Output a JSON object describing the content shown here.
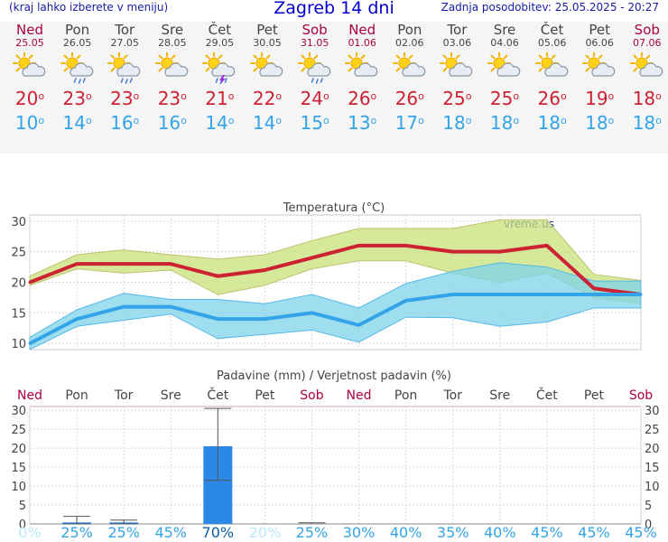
{
  "header": {
    "hint": "(kraj lahko izberete v meniju)",
    "title": "Zagreb 14 dni",
    "updated": "Zadnja posodobitev: 25.05.2025 - 20:27"
  },
  "days": [
    {
      "name": "Ned",
      "date": "25.05",
      "weekend": true,
      "icon": "sun-cloud",
      "tmax": "20",
      "tmin": "10"
    },
    {
      "name": "Pon",
      "date": "26.05",
      "weekend": false,
      "icon": "sun-cloud-rain",
      "tmax": "23",
      "tmin": "14"
    },
    {
      "name": "Tor",
      "date": "27.05",
      "weekend": false,
      "icon": "sun-cloud-rain",
      "tmax": "23",
      "tmin": "16"
    },
    {
      "name": "Sre",
      "date": "28.05",
      "weekend": false,
      "icon": "sun-cloud",
      "tmax": "23",
      "tmin": "16"
    },
    {
      "name": "Čet",
      "date": "29.05",
      "weekend": false,
      "icon": "thunderstorm",
      "tmax": "21",
      "tmin": "14"
    },
    {
      "name": "Pet",
      "date": "30.05",
      "weekend": false,
      "icon": "sun-cloud",
      "tmax": "22",
      "tmin": "14"
    },
    {
      "name": "Sob",
      "date": "31.05",
      "weekend": true,
      "icon": "sun-cloud-rain",
      "tmax": "24",
      "tmin": "15"
    },
    {
      "name": "Ned",
      "date": "01.06",
      "weekend": true,
      "icon": "sun-cloud",
      "tmax": "26",
      "tmin": "13"
    },
    {
      "name": "Pon",
      "date": "02.06",
      "weekend": false,
      "icon": "sun-cloud",
      "tmax": "26",
      "tmin": "17"
    },
    {
      "name": "Tor",
      "date": "03.06",
      "weekend": false,
      "icon": "sun-cloud",
      "tmax": "25",
      "tmin": "18"
    },
    {
      "name": "Sre",
      "date": "04.06",
      "weekend": false,
      "icon": "sun-cloud",
      "tmax": "25",
      "tmin": "18"
    },
    {
      "name": "Čet",
      "date": "05.06",
      "weekend": false,
      "icon": "sun-cloud",
      "tmax": "26",
      "tmin": "18"
    },
    {
      "name": "Pet",
      "date": "06.06",
      "weekend": false,
      "icon": "sun-cloud",
      "tmax": "19",
      "tmin": "18"
    },
    {
      "name": "Sob",
      "date": "07.06",
      "weekend": true,
      "icon": "sun-cloud",
      "tmax": "18",
      "tmin": "18"
    }
  ],
  "degree_symbol": "o",
  "colors": {
    "max": "#cc2233",
    "min": "#33a4e8",
    "weekend": "#aa0044",
    "bar": "#2b88e6",
    "band_max": "#c8e27a",
    "band_min": "#7fd3ea"
  },
  "chart_data": [
    {
      "type": "line",
      "title": "Temperatura (°C)",
      "watermark": "vreme.us",
      "x": [
        0,
        1,
        2,
        3,
        4,
        5,
        6,
        7,
        8,
        9,
        10,
        11,
        12,
        13
      ],
      "ylim": [
        9,
        31
      ],
      "yticks": [
        10,
        15,
        20,
        25,
        30
      ],
      "grid": true,
      "series": [
        {
          "values": [
            20,
            23,
            23,
            23,
            21,
            22,
            24,
            26,
            26,
            25,
            25,
            26,
            19,
            18
          ],
          "upper": [
            21,
            24.5,
            25.3,
            24.5,
            23.8,
            24.5,
            26.8,
            28.8,
            28.8,
            28.8,
            30.2,
            30.2,
            21.3,
            20.3
          ],
          "lower": [
            19.5,
            22.2,
            21.5,
            22,
            18,
            19.5,
            22.2,
            23.5,
            23.5,
            21.5,
            20,
            21.5,
            17.5,
            16.5
          ]
        },
        {
          "values": [
            10,
            14,
            16,
            16,
            14,
            14,
            15,
            13,
            17,
            18,
            18,
            18,
            18,
            18
          ],
          "upper": [
            11,
            15.5,
            18.2,
            17.2,
            17.2,
            16.5,
            18,
            15.8,
            19.8,
            21.8,
            23.2,
            22.5,
            20.2,
            20.2
          ],
          "lower": [
            9,
            12.8,
            13.8,
            14.8,
            10.8,
            11.5,
            12.2,
            10.2,
            14.3,
            14.2,
            12.8,
            13.5,
            15.8,
            15.8
          ]
        }
      ]
    },
    {
      "type": "bar",
      "title": "Padavine (mm) / Verjetnost padavin (%)",
      "ylim": [
        0,
        31
      ],
      "yticks": [
        0,
        5,
        10,
        15,
        20,
        25,
        30
      ],
      "values": [
        0,
        0.4,
        0.4,
        0,
        20.5,
        0,
        0,
        0,
        0,
        0,
        0,
        0,
        0,
        0
      ],
      "whisker_low": [
        null,
        0,
        0,
        null,
        11.5,
        null,
        0,
        null,
        null,
        null,
        null,
        null,
        null,
        null
      ],
      "whisker_high": [
        null,
        2,
        1,
        null,
        30.5,
        null,
        0.3,
        null,
        null,
        null,
        null,
        null,
        null,
        null
      ],
      "probability": [
        "0%",
        "25%",
        "25%",
        "45%",
        "70%",
        "20%",
        "25%",
        "30%",
        "40%",
        "35%",
        "40%",
        "45%",
        "45%",
        "45%"
      ],
      "probability_colors": [
        "#bfe8fb",
        "#33a4e8",
        "#33a4e8",
        "#33a4e8",
        "#0a5fa8",
        "#bfe8fb",
        "#33a4e8",
        "#33a4e8",
        "#33a4e8",
        "#33a4e8",
        "#33a4e8",
        "#33a4e8",
        "#33a4e8",
        "#33a4e8"
      ]
    }
  ]
}
